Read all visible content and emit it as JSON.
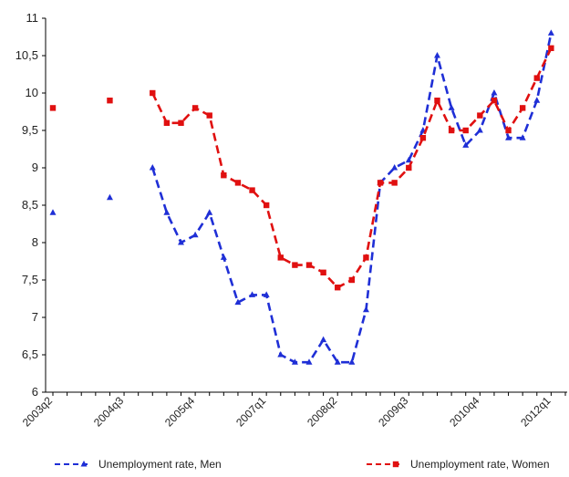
{
  "chart_data": {
    "type": "line",
    "title": "",
    "xlabel": "",
    "ylabel": "",
    "ylim": [
      6,
      11
    ],
    "y_ticks": [
      "6",
      "6,5",
      "7",
      "7,5",
      "8",
      "8,5",
      "9",
      "9,5",
      "10",
      "10,5",
      "11"
    ],
    "x_tick_labels": [
      "2003q2",
      "2004q3",
      "2005q4",
      "2007q1",
      "2008q2",
      "2009q3",
      "2010q4",
      "2012q1"
    ],
    "x": [
      "2003q2",
      "2003q3",
      "2003q4",
      "2004q1",
      "2004q2",
      "2004q3",
      "2004q4",
      "2005q1",
      "2005q2",
      "2005q3",
      "2005q4",
      "2006q1",
      "2006q2",
      "2006q3",
      "2006q4",
      "2007q1",
      "2007q2",
      "2007q3",
      "2007q4",
      "2008q1",
      "2008q2",
      "2008q3",
      "2008q4",
      "2009q1",
      "2009q2",
      "2009q3",
      "2009q4",
      "2010q1",
      "2010q2",
      "2010q3",
      "2010q4",
      "2011q1",
      "2011q2",
      "2011q3",
      "2011q4",
      "2012q1",
      "2012q2"
    ],
    "grid": false,
    "legend_position": "bottom",
    "series": [
      {
        "name": "Unemployment rate, Men",
        "color": "#1f2fd6",
        "marker": "triangle",
        "values": [
          8.4,
          null,
          null,
          null,
          8.6,
          null,
          null,
          9.0,
          8.4,
          8.0,
          8.1,
          8.4,
          7.8,
          7.2,
          7.3,
          7.3,
          6.5,
          6.4,
          6.4,
          6.7,
          6.4,
          6.4,
          7.1,
          8.8,
          9.0,
          9.1,
          9.5,
          10.5,
          9.8,
          9.3,
          9.5,
          10.0,
          9.4,
          9.4,
          9.9,
          10.8,
          null
        ]
      },
      {
        "name": "Unemployment rate, Women",
        "color": "#e01010",
        "marker": "square",
        "values": [
          9.8,
          null,
          null,
          null,
          9.9,
          null,
          null,
          10.0,
          9.6,
          9.6,
          9.8,
          9.7,
          8.9,
          8.8,
          8.7,
          8.5,
          7.8,
          7.7,
          7.7,
          7.6,
          7.4,
          7.5,
          7.8,
          8.8,
          8.8,
          9.0,
          9.4,
          9.9,
          9.5,
          9.5,
          9.7,
          9.9,
          9.5,
          9.8,
          10.2,
          10.6,
          null
        ]
      }
    ]
  }
}
